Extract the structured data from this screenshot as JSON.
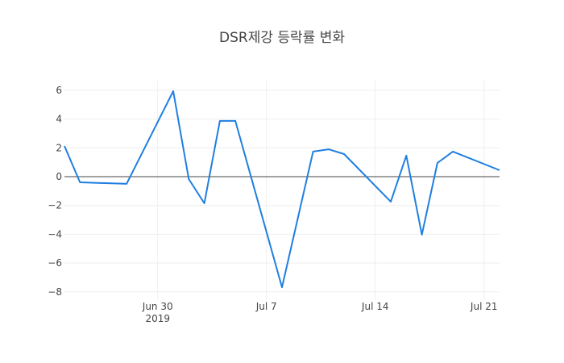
{
  "chart_data": {
    "type": "line",
    "title": "DSR제강 등락률 변화",
    "xlabel": "",
    "ylabel": "",
    "x": [
      "2019-06-24",
      "2019-06-25",
      "2019-06-28",
      "2019-07-01",
      "2019-07-02",
      "2019-07-03",
      "2019-07-04",
      "2019-07-05",
      "2019-07-08",
      "2019-07-10",
      "2019-07-11",
      "2019-07-12",
      "2019-07-15",
      "2019-07-16",
      "2019-07-17",
      "2019-07-18",
      "2019-07-19",
      "2019-07-22"
    ],
    "series": [
      {
        "name": "등락률",
        "color": "#1f7fe0",
        "values": [
          2.13,
          -0.39,
          -0.5,
          5.94,
          -0.17,
          -1.85,
          3.87,
          3.87,
          -7.68,
          1.74,
          1.9,
          1.57,
          -1.74,
          1.46,
          -4.03,
          0.95,
          1.74,
          0.45
        ]
      }
    ],
    "ylim": [
      -8.5,
      6.6
    ],
    "yticks": [
      6,
      4,
      2,
      0,
      -2,
      -4,
      -6,
      -8
    ],
    "ytick_labels": [
      "6",
      "4",
      "2",
      "0",
      "−2",
      "−4",
      "−6",
      "−8"
    ],
    "xticks": [
      {
        "date": "2019-06-30",
        "label": "Jun 30",
        "sublabel": "2019"
      },
      {
        "date": "2019-07-07",
        "label": "Jul 7"
      },
      {
        "date": "2019-07-14",
        "label": "Jul 14"
      },
      {
        "date": "2019-07-21",
        "label": "Jul 21"
      }
    ],
    "grid": true,
    "zeroline": true
  },
  "colors": {
    "line": "#1f7fe0",
    "grid": "#eeeeee",
    "zeroline": "#444444",
    "text": "#444444"
  }
}
